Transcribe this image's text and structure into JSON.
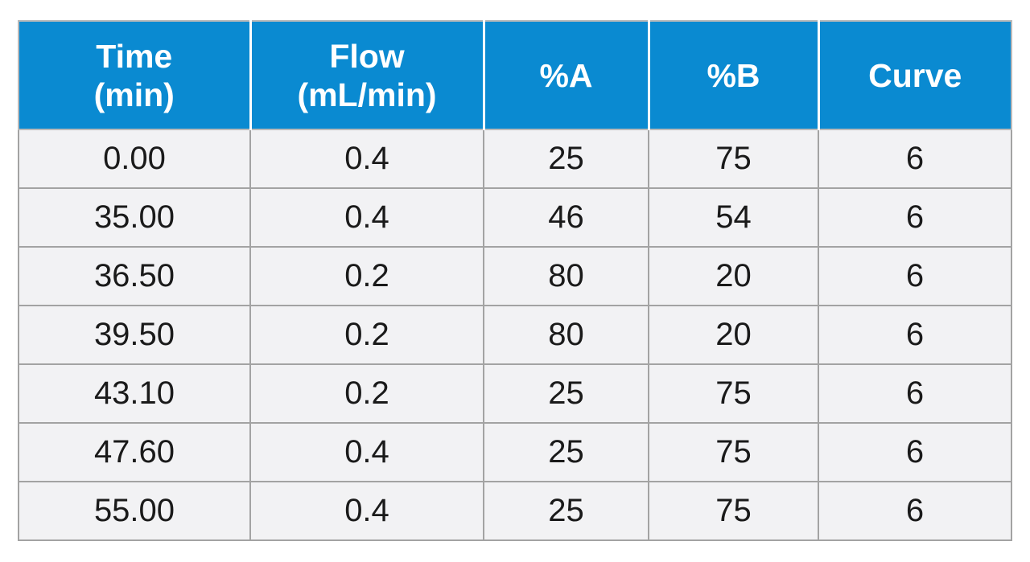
{
  "table": {
    "headers": [
      {
        "line1": "Time",
        "line2": "(min)"
      },
      {
        "line1": "Flow",
        "line2": "(mL/min)"
      },
      {
        "line1": "%A",
        "line2": ""
      },
      {
        "line1": "%B",
        "line2": ""
      },
      {
        "line1": "Curve",
        "line2": ""
      }
    ],
    "rows": [
      [
        "0.00",
        "0.4",
        "25",
        "75",
        "6"
      ],
      [
        "35.00",
        "0.4",
        "46",
        "54",
        "6"
      ],
      [
        "36.50",
        "0.2",
        "80",
        "20",
        "6"
      ],
      [
        "39.50",
        "0.2",
        "80",
        "20",
        "6"
      ],
      [
        "43.10",
        "0.2",
        "25",
        "75",
        "6"
      ],
      [
        "47.60",
        "0.4",
        "25",
        "75",
        "6"
      ],
      [
        "55.00",
        "0.4",
        "25",
        "75",
        "6"
      ]
    ]
  },
  "colors": {
    "header_bg": "#0a8ad1",
    "header_text": "#ffffff",
    "cell_bg": "#f2f2f4",
    "cell_text": "#1a1a1a",
    "grid": "#a3a3a3"
  }
}
